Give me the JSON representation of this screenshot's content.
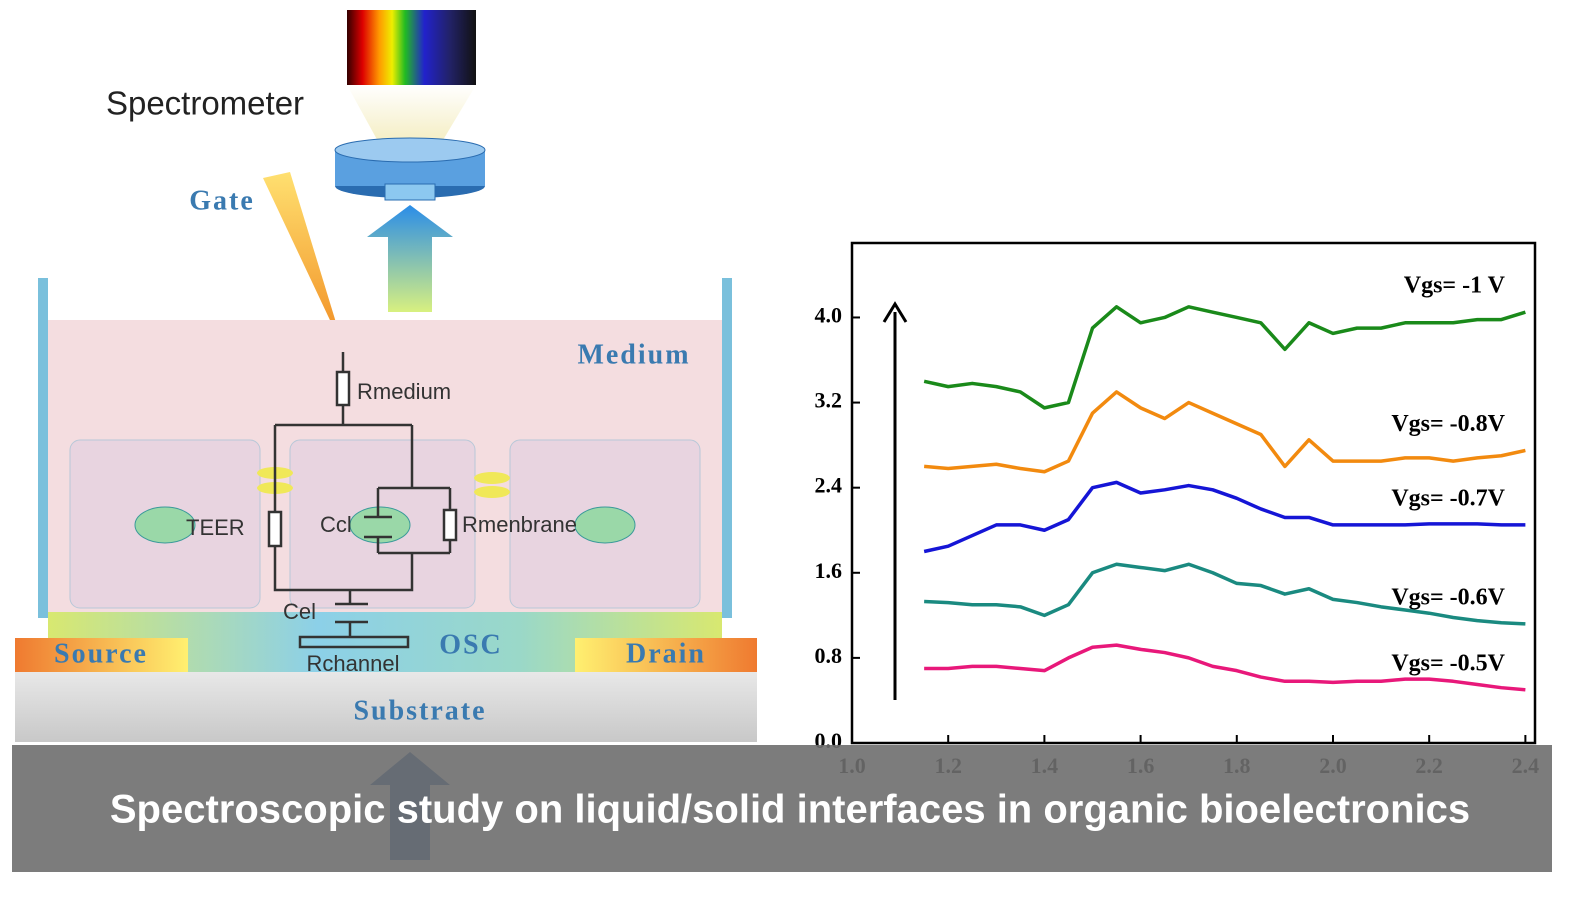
{
  "diagram": {
    "spectrometer": "Spectrometer",
    "gate": "Gate",
    "medium": "Medium",
    "r_medium": "Rmedium",
    "teer": "TEER",
    "c_cl": "Ccl",
    "r_membrane": "Rmenbrane",
    "c_el": "Cel",
    "r_channel": "Rchannel",
    "osc": "OSC",
    "source": "Source",
    "drain": "Drain",
    "substrate": "Substrate"
  },
  "caption": "Spectroscopic study on liquid/solid interfaces in organic bioelectronics",
  "chart_data": {
    "type": "line",
    "x": [
      1.15,
      1.2,
      1.25,
      1.3,
      1.35,
      1.4,
      1.45,
      1.5,
      1.55,
      1.6,
      1.65,
      1.7,
      1.75,
      1.8,
      1.85,
      1.9,
      1.95,
      2.0,
      2.05,
      2.1,
      2.15,
      2.2,
      2.25,
      2.3,
      2.35,
      2.4
    ],
    "xlim": [
      1.0,
      2.42
    ],
    "xticks": [
      {
        "value": 1.0,
        "label": "1.0"
      },
      1.2,
      1.4,
      1.6,
      1.8,
      {
        "value": 2.0,
        "label": "2.0"
      },
      2.2,
      2.4
    ],
    "ylim": [
      0,
      4.7
    ],
    "yticks": [
      {
        "value": 0,
        "label": "0.0"
      },
      0.8,
      1.6,
      2.4,
      3.2,
      {
        "value": 4,
        "label": "4.0"
      }
    ],
    "series": [
      {
        "name": "Vgs= -1 V",
        "color": "#1a8a1a",
        "values": [
          3.4,
          3.35,
          3.38,
          3.35,
          3.3,
          3.15,
          3.2,
          3.9,
          4.1,
          3.95,
          4.0,
          4.1,
          4.05,
          4.0,
          3.95,
          3.7,
          3.95,
          3.85,
          3.9,
          3.9,
          3.95,
          3.95,
          3.95,
          3.98,
          3.98,
          4.05
        ]
      },
      {
        "name": "Vgs= -0.8V",
        "color": "#f28a0f",
        "values": [
          2.6,
          2.58,
          2.6,
          2.62,
          2.58,
          2.55,
          2.65,
          3.1,
          3.3,
          3.15,
          3.05,
          3.2,
          3.1,
          3.0,
          2.9,
          2.6,
          2.85,
          2.65,
          2.65,
          2.65,
          2.68,
          2.68,
          2.65,
          2.68,
          2.7,
          2.75
        ]
      },
      {
        "name": "Vgs= -0.7V",
        "color": "#1515d6",
        "values": [
          1.8,
          1.85,
          1.95,
          2.05,
          2.05,
          2.0,
          2.1,
          2.4,
          2.45,
          2.35,
          2.38,
          2.42,
          2.38,
          2.3,
          2.2,
          2.12,
          2.12,
          2.05,
          2.05,
          2.05,
          2.05,
          2.06,
          2.06,
          2.06,
          2.05,
          2.05
        ]
      },
      {
        "name": "Vgs= -0.6V",
        "color": "#1a8a80",
        "values": [
          1.33,
          1.32,
          1.3,
          1.3,
          1.28,
          1.2,
          1.3,
          1.6,
          1.68,
          1.65,
          1.62,
          1.68,
          1.6,
          1.5,
          1.48,
          1.4,
          1.45,
          1.35,
          1.32,
          1.28,
          1.25,
          1.22,
          1.18,
          1.15,
          1.13,
          1.12
        ]
      },
      {
        "name": "Vgs= -0.5V",
        "color": "#e8187a",
        "values": [
          0.7,
          0.7,
          0.72,
          0.72,
          0.7,
          0.68,
          0.8,
          0.9,
          0.92,
          0.88,
          0.85,
          0.8,
          0.72,
          0.68,
          0.62,
          0.58,
          0.58,
          0.57,
          0.58,
          0.58,
          0.6,
          0.6,
          0.58,
          0.55,
          0.52,
          0.5
        ]
      }
    ]
  }
}
